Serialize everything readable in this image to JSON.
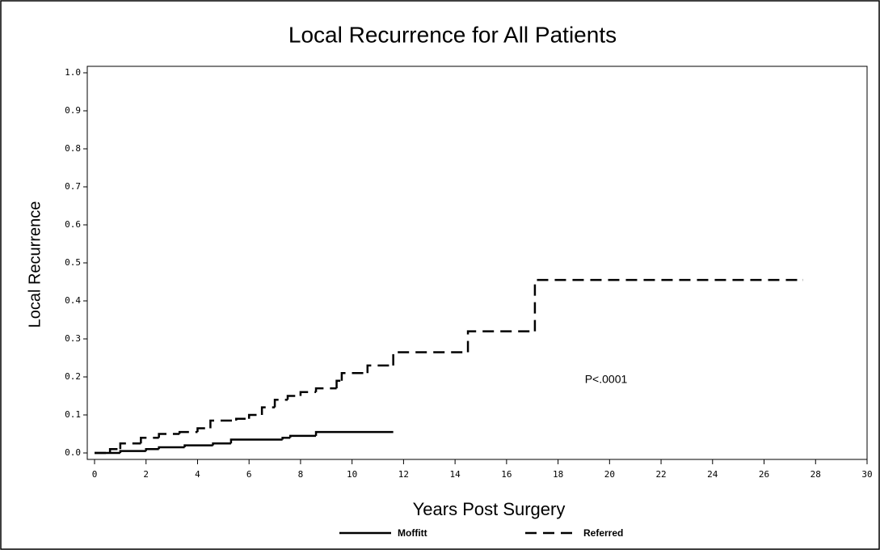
{
  "chart_data": {
    "type": "step-line",
    "title": "Local Recurrence for All Patients",
    "x_label": "Years Post Surgery",
    "y_label": "Local Recurrence",
    "annotation": "P<.0001",
    "xlim": [
      0,
      30
    ],
    "ylim": [
      0,
      1
    ],
    "xticks": [
      0,
      2,
      4,
      6,
      8,
      10,
      12,
      14,
      16,
      18,
      20,
      22,
      24,
      26,
      28,
      30
    ],
    "yticks": [
      {
        "value": 0,
        "label": "0.0"
      },
      0.1,
      0.2,
      0.3,
      0.4,
      0.5,
      0.6,
      0.7,
      0.8,
      0.9,
      {
        "value": 1,
        "label": "1.0"
      }
    ],
    "series": [
      {
        "name": "Moffitt",
        "color": "#000000",
        "style": "solid",
        "x": [
          0,
          1,
          2,
          2.5,
          3.5,
          4.6,
          5.3,
          7.3,
          7.6,
          8.6,
          11.6
        ],
        "values": [
          0,
          0.005,
          0.01,
          0.015,
          0.02,
          0.025,
          0.035,
          0.04,
          0.045,
          0.055,
          0.055
        ]
      },
      {
        "name": "Referred",
        "color": "#000000",
        "style": "dashed",
        "x": [
          0,
          0.6,
          1,
          1.8,
          2.5,
          3.3,
          4,
          4.5,
          5.5,
          6,
          6.5,
          7,
          7.5,
          8,
          8.6,
          9.4,
          9.6,
          10.6,
          11.6,
          14.5,
          17.1,
          27.5
        ],
        "values": [
          0,
          0.01,
          0.025,
          0.04,
          0.05,
          0.055,
          0.065,
          0.085,
          0.09,
          0.1,
          0.12,
          0.14,
          0.15,
          0.16,
          0.17,
          0.19,
          0.21,
          0.23,
          0.265,
          0.32,
          0.455,
          0.455
        ]
      }
    ]
  }
}
